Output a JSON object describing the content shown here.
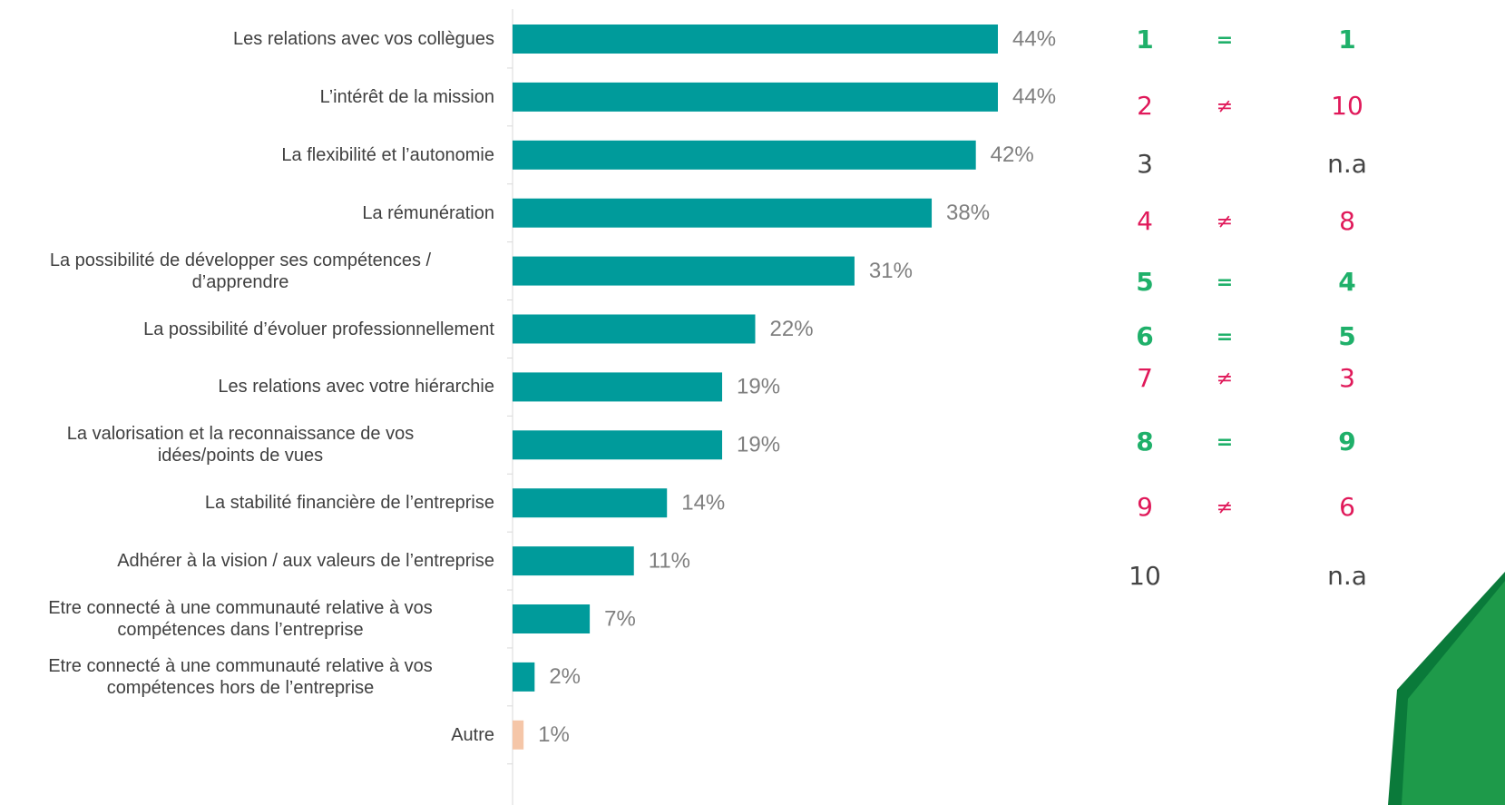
{
  "chart_data": {
    "type": "barh",
    "categories": [
      "Les relations avec vos collègues",
      "L’intérêt de la mission",
      "La flexibilité et l’autonomie",
      "La rémunération",
      "La possibilité de développer ses compétences /\nd’apprendre",
      "La possibilité d’évoluer professionnellement",
      "Les relations avec votre hiérarchie",
      "La valorisation et la reconnaissance de vos\nidées/points de vues",
      "La stabilité financière de l’entreprise",
      "Adhérer à la vision / aux valeurs de l’entreprise",
      "Etre connecté à une communauté relative à vos\ncompétences dans l’entreprise",
      "Etre connecté à une communauté relative à vos\ncompétences hors de l’entreprise",
      "Autre"
    ],
    "values": [
      44,
      44,
      42,
      38,
      31,
      22,
      19,
      19,
      14,
      11,
      7,
      2,
      1
    ],
    "value_labels": [
      "44%",
      "44%",
      "42%",
      "38%",
      "31%",
      "22%",
      "19%",
      "19%",
      "14%",
      "11%",
      "7%",
      "2%",
      "1%"
    ],
    "colors": [
      "#009b9b",
      "#009b9b",
      "#009b9b",
      "#009b9b",
      "#009b9b",
      "#009b9b",
      "#009b9b",
      "#009b9b",
      "#009b9b",
      "#009b9b",
      "#009b9b",
      "#009b9b",
      "#f5c6a8"
    ],
    "xlim": [
      0,
      44
    ]
  },
  "comparison": [
    {
      "rank": 1,
      "sign": "=",
      "other": 1,
      "color": "#1fb06a"
    },
    {
      "rank": 2,
      "sign": "≠",
      "other": 10,
      "color": "#e0195a"
    },
    {
      "rank": 3,
      "other": "n.a",
      "color": "#444444"
    },
    {
      "rank": 4,
      "sign": "≠",
      "other": 8,
      "color": "#e0195a"
    },
    {
      "rank": 5,
      "sign": "=",
      "other": 4,
      "color": "#1fb06a"
    },
    {
      "rank": 6,
      "sign": "=",
      "other": 5,
      "color": "#1fb06a"
    },
    {
      "rank": 7,
      "sign": "≠",
      "other": 3,
      "color": "#e0195a"
    },
    {
      "rank": 8,
      "sign": "=",
      "other": 9,
      "color": "#1fb06a"
    },
    {
      "rank": 9,
      "sign": "≠",
      "other": 6,
      "color": "#e0195a"
    },
    {
      "rank": 10,
      "other": "n.a",
      "color": "#444444"
    }
  ]
}
